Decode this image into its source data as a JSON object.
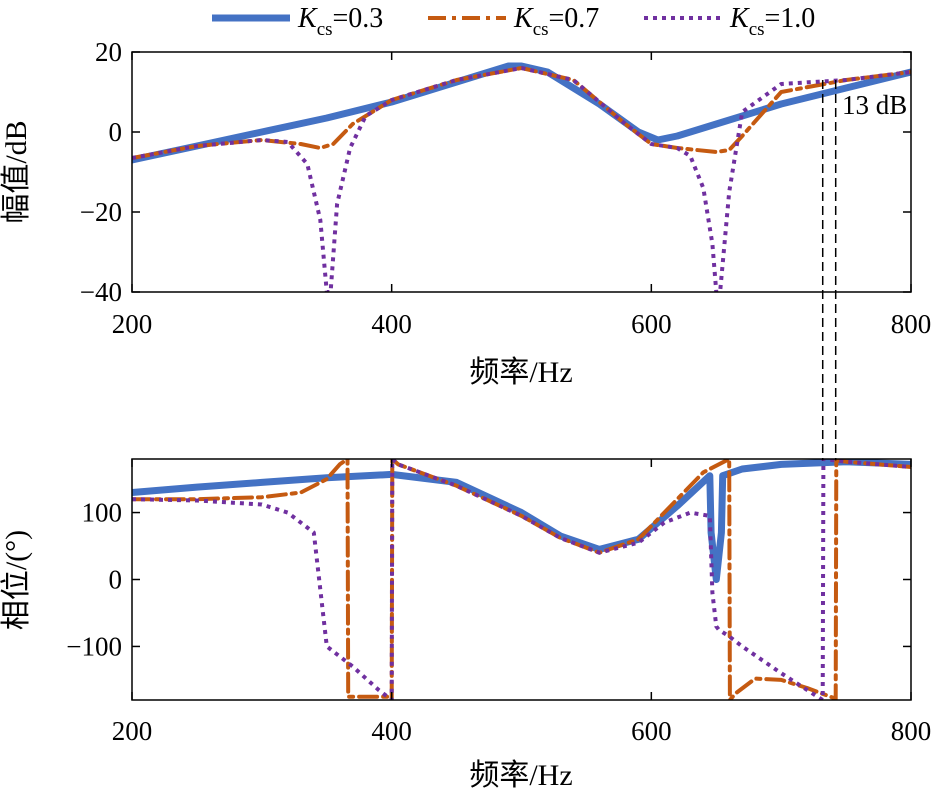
{
  "chart_data": [
    {
      "type": "line",
      "panel": "magnitude",
      "xlabel": "频率/Hz",
      "ylabel": "幅值/dB",
      "xlim": [
        200,
        800
      ],
      "ylim": [
        -40,
        20
      ],
      "xticks": [
        "200",
        "400",
        "600",
        "800"
      ],
      "yticks": [
        "20",
        "0",
        "−20",
        "−40"
      ],
      "grid": false,
      "legend_position": "top, above plot",
      "annotation": "13 dB",
      "series": [
        {
          "name": "K_cs=0.3",
          "label_var": "K",
          "label_sub": "cs",
          "label_value": "=0.3",
          "color": "#4472c4",
          "style": "solid",
          "x": [
            200,
            250,
            300,
            350,
            400,
            450,
            490,
            500,
            520,
            560,
            590,
            605,
            620,
            650,
            700,
            750,
            800
          ],
          "y": [
            -7,
            -3.5,
            0,
            3.5,
            7.5,
            12.5,
            16.5,
            16.5,
            15,
            7,
            0,
            -2,
            -1,
            2,
            7,
            11,
            15
          ]
        },
        {
          "name": "K_cs=0.7",
          "label_var": "K",
          "label_sub": "cs",
          "label_value": "=0.7",
          "color": "#c55a11",
          "style": "dash-dot",
          "x": [
            200,
            250,
            300,
            330,
            345,
            355,
            370,
            400,
            450,
            500,
            540,
            580,
            600,
            620,
            650,
            660,
            670,
            700,
            750,
            800
          ],
          "y": [
            -6.5,
            -3.5,
            -2,
            -3,
            -4,
            -3,
            2,
            8,
            13,
            16,
            13,
            2,
            -3,
            -4,
            -5,
            -4.5,
            -1,
            10,
            13,
            15
          ]
        },
        {
          "name": "K_cs=1.0",
          "label_var": "K",
          "label_sub": "cs",
          "label_value": "=1.0",
          "color": "#7030a0",
          "style": "dotted",
          "x": [
            200,
            250,
            300,
            320,
            335,
            345,
            350,
            353,
            358,
            368,
            380,
            400,
            450,
            500,
            540,
            580,
            600,
            620,
            630,
            640,
            647,
            650,
            653,
            660,
            670,
            700,
            750,
            800
          ],
          "y": [
            -6.5,
            -3.5,
            -2,
            -2.5,
            -8,
            -22,
            -40,
            -40,
            -18,
            -4,
            4,
            8,
            13,
            16,
            13,
            2,
            -3,
            -4,
            -6,
            -14,
            -28,
            -40,
            -40,
            -15,
            5,
            12,
            13,
            15
          ]
        }
      ]
    },
    {
      "type": "line",
      "panel": "phase",
      "xlabel": "频率/Hz",
      "ylabel": "相位/(°)",
      "xlim": [
        200,
        800
      ],
      "ylim": [
        -180,
        180
      ],
      "xticks": [
        "200",
        "400",
        "600",
        "800"
      ],
      "yticks": [
        "100",
        "0",
        "−100"
      ],
      "grid": false,
      "series": [
        {
          "name": "K_cs=0.3",
          "x": [
            200,
            250,
            300,
            350,
            400,
            450,
            500,
            530,
            560,
            590,
            620,
            645,
            646,
            650,
            654,
            655,
            670,
            700,
            750,
            800
          ],
          "y": [
            130,
            138,
            145,
            152,
            157,
            145,
            100,
            65,
            45,
            60,
            110,
            155,
            70,
            0,
            70,
            155,
            165,
            172,
            176,
            172
          ]
        },
        {
          "name": "K_cs=0.7",
          "x": [
            200,
            250,
            300,
            330,
            350,
            360,
            366,
            366.5,
            375,
            397,
            400,
            400.5,
            405,
            450,
            500,
            530,
            560,
            590,
            620,
            640,
            660,
            660.5,
            665,
            680,
            700,
            720,
            742,
            742.5,
            750,
            800
          ],
          "y": [
            120,
            120,
            123,
            130,
            150,
            172,
            180,
            -175,
            -175,
            -175,
            -180,
            180,
            172,
            140,
            95,
            62,
            40,
            60,
            120,
            160,
            180,
            -180,
            -170,
            -148,
            -150,
            -162,
            -178,
            178,
            176,
            168
          ]
        },
        {
          "name": "K_cs=1.0",
          "x": [
            200,
            250,
            300,
            320,
            340,
            350,
            370,
            390,
            400,
            400.5,
            405,
            450,
            500,
            530,
            560,
            590,
            610,
            630,
            645,
            647,
            650,
            652,
            660,
            670,
            700,
            720,
            732,
            732.5,
            750,
            800
          ],
          "y": [
            120,
            118,
            112,
            100,
            70,
            -100,
            -130,
            -165,
            -180,
            180,
            172,
            140,
            95,
            62,
            40,
            55,
            85,
            100,
            95,
            -20,
            -70,
            -75,
            -85,
            -100,
            -140,
            -165,
            -180,
            180,
            176,
            168
          ]
        }
      ]
    }
  ]
}
